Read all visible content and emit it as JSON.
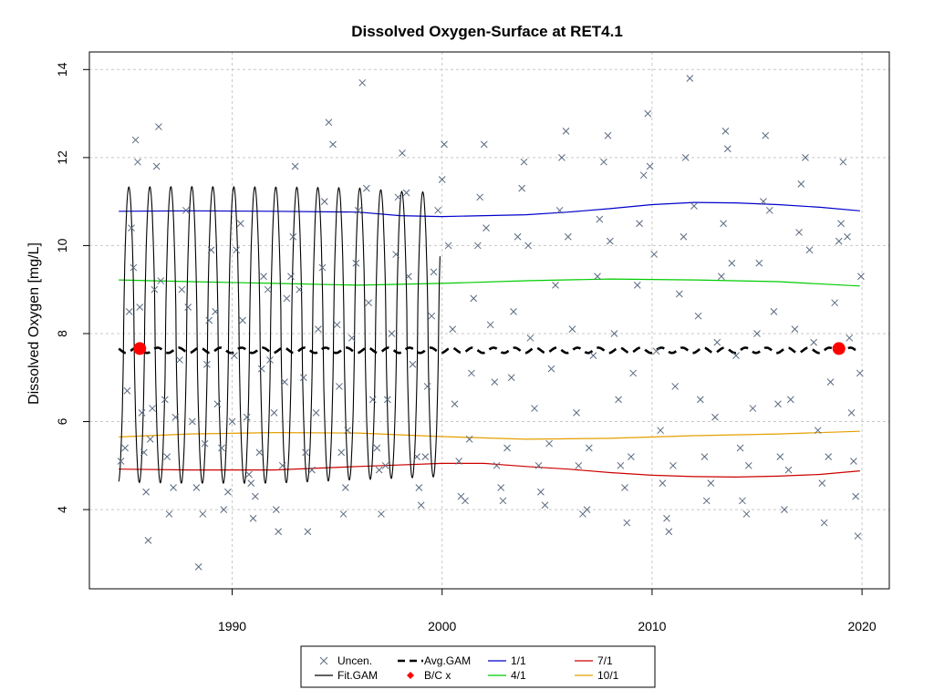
{
  "chart_data": {
    "type": "line",
    "title": "Dissolved Oxygen-Surface at RET4.1",
    "xlabel": "",
    "ylabel": "Dissolved Oxygen [mg/L]",
    "xlim": [
      1983.2,
      2021.3
    ],
    "ylim": [
      2.2,
      14.4
    ],
    "x_ticks": [
      "1990",
      "2000",
      "2010",
      "2020"
    ],
    "y_ticks": [
      "4",
      "6",
      "8",
      "10",
      "12",
      "14"
    ],
    "x_tick_values": [
      1990,
      2000,
      2010,
      2020
    ],
    "y_tick_values": [
      4,
      6,
      8,
      10,
      12,
      14
    ],
    "grid": true,
    "legend_position": "bottom-center",
    "colors": {
      "uncen": "#5a6a80",
      "fit_gam": "#000000",
      "avg_gam": "#000000",
      "bc": "#ff0000",
      "jan": "#0000cc",
      "apr": "#00cc00",
      "jul": "#cc0000",
      "oct": "#e69f00",
      "grid": "#c8c8c8"
    },
    "legend": [
      {
        "label": "Uncen.",
        "kind": "cross",
        "color": "#5a6a80"
      },
      {
        "label": "Fit.GAM",
        "kind": "line",
        "color": "#000000"
      },
      {
        "label": "Avg.GAM",
        "kind": "dashed",
        "color": "#000000"
      },
      {
        "label": "B/C x",
        "kind": "diamond",
        "color": "#ff0000"
      },
      {
        "label": "1/1",
        "kind": "line",
        "color": "#0000cc"
      },
      {
        "label": "4/1",
        "kind": "line",
        "color": "#00cc00"
      },
      {
        "label": "7/1",
        "kind": "line",
        "color": "#cc0000"
      },
      {
        "label": "10/1",
        "kind": "line",
        "color": "#e69f00"
      }
    ],
    "series": [
      {
        "name": "1/1",
        "x": [
          1984.6,
          1988,
          1992,
          1996,
          1998,
          2000,
          2002,
          2004,
          2006,
          2008,
          2010,
          2012,
          2014,
          2016,
          2018,
          2019.9
        ],
        "y": [
          10.78,
          10.79,
          10.78,
          10.76,
          10.68,
          10.66,
          10.68,
          10.7,
          10.76,
          10.84,
          10.93,
          10.98,
          10.97,
          10.93,
          10.87,
          10.79
        ]
      },
      {
        "name": "4/1",
        "x": [
          1984.6,
          1988,
          1992,
          1996,
          2000,
          2004,
          2008,
          2012,
          2016,
          2019.9
        ],
        "y": [
          9.22,
          9.18,
          9.14,
          9.1,
          9.14,
          9.2,
          9.24,
          9.22,
          9.18,
          9.08
        ]
      },
      {
        "name": "7/1",
        "x": [
          1984.6,
          1988,
          1992,
          1996,
          2000,
          2002,
          2004,
          2006,
          2008,
          2010,
          2012,
          2014,
          2016,
          2018,
          2019.9
        ],
        "y": [
          4.92,
          4.9,
          4.9,
          4.98,
          5.05,
          5.05,
          4.98,
          4.92,
          4.84,
          4.78,
          4.75,
          4.74,
          4.76,
          4.8,
          4.88
        ]
      },
      {
        "name": "10/1",
        "x": [
          1984.6,
          1988,
          1992,
          1996,
          2000,
          2004,
          2008,
          2012,
          2016,
          2019.9
        ],
        "y": [
          5.65,
          5.72,
          5.75,
          5.74,
          5.66,
          5.6,
          5.62,
          5.68,
          5.72,
          5.78
        ]
      },
      {
        "name": "Avg.GAM",
        "x": [
          1984.6,
          2019.9
        ],
        "y": [
          7.62,
          7.62
        ]
      }
    ],
    "fit_gam": {
      "x_start": 1984.6,
      "x_end": 1999.9,
      "amplitude": 3.35,
      "peak_fraction": 0.08
    },
    "bc_points": [
      {
        "x": 1985.6,
        "y": 7.66
      },
      {
        "x": 2018.9,
        "y": 7.66
      }
    ],
    "uncen_points": [
      [
        1984.7,
        5.1
      ],
      [
        1984.9,
        5.4
      ],
      [
        1985.0,
        6.7
      ],
      [
        1985.1,
        8.5
      ],
      [
        1985.2,
        10.4
      ],
      [
        1985.3,
        9.5
      ],
      [
        1985.4,
        12.4
      ],
      [
        1985.5,
        11.9
      ],
      [
        1985.6,
        8.6
      ],
      [
        1985.7,
        6.2
      ],
      [
        1985.8,
        5.3
      ],
      [
        1985.9,
        4.4
      ],
      [
        1986.0,
        3.3
      ],
      [
        1986.1,
        5.6
      ],
      [
        1986.2,
        6.3
      ],
      [
        1986.3,
        9.0
      ],
      [
        1986.4,
        11.8
      ],
      [
        1986.5,
        12.7
      ],
      [
        1986.6,
        9.2
      ],
      [
        1986.8,
        6.5
      ],
      [
        1986.9,
        5.2
      ],
      [
        1987.0,
        3.9
      ],
      [
        1987.2,
        4.5
      ],
      [
        1987.3,
        6.1
      ],
      [
        1987.5,
        7.4
      ],
      [
        1987.6,
        9.0
      ],
      [
        1987.8,
        10.8
      ],
      [
        1987.9,
        8.6
      ],
      [
        1988.1,
        6.0
      ],
      [
        1988.3,
        4.5
      ],
      [
        1988.4,
        2.7
      ],
      [
        1988.6,
        3.9
      ],
      [
        1988.7,
        5.5
      ],
      [
        1988.8,
        7.3
      ],
      [
        1988.9,
        8.3
      ],
      [
        1989.0,
        9.9
      ],
      [
        1989.2,
        8.5
      ],
      [
        1989.3,
        6.4
      ],
      [
        1989.5,
        5.4
      ],
      [
        1989.6,
        4.0
      ],
      [
        1989.8,
        4.4
      ],
      [
        1990.0,
        6.0
      ],
      [
        1990.1,
        7.5
      ],
      [
        1990.2,
        9.9
      ],
      [
        1990.4,
        10.5
      ],
      [
        1990.5,
        8.3
      ],
      [
        1990.7,
        6.1
      ],
      [
        1990.8,
        4.8
      ],
      [
        1990.9,
        4.6
      ],
      [
        1991.0,
        3.8
      ],
      [
        1991.1,
        4.3
      ],
      [
        1991.3,
        5.3
      ],
      [
        1991.4,
        7.2
      ],
      [
        1991.5,
        9.3
      ],
      [
        1991.7,
        9.0
      ],
      [
        1991.8,
        7.4
      ],
      [
        1992.0,
        6.2
      ],
      [
        1992.1,
        4.0
      ],
      [
        1992.2,
        3.5
      ],
      [
        1992.4,
        5.0
      ],
      [
        1992.5,
        6.9
      ],
      [
        1992.6,
        8.8
      ],
      [
        1992.8,
        9.3
      ],
      [
        1992.9,
        10.2
      ],
      [
        1993.0,
        11.8
      ],
      [
        1993.2,
        9.0
      ],
      [
        1993.4,
        7.0
      ],
      [
        1993.5,
        5.3
      ],
      [
        1993.6,
        3.5
      ],
      [
        1993.8,
        4.9
      ],
      [
        1994.0,
        6.2
      ],
      [
        1994.1,
        8.1
      ],
      [
        1994.3,
        9.5
      ],
      [
        1994.4,
        11.0
      ],
      [
        1994.6,
        12.8
      ],
      [
        1994.8,
        12.3
      ],
      [
        1995.0,
        8.2
      ],
      [
        1995.1,
        6.8
      ],
      [
        1995.2,
        5.3
      ],
      [
        1995.3,
        3.9
      ],
      [
        1995.4,
        4.5
      ],
      [
        1995.5,
        5.8
      ],
      [
        1995.7,
        7.9
      ],
      [
        1995.9,
        9.6
      ],
      [
        1996.0,
        10.8
      ],
      [
        1996.2,
        13.7
      ],
      [
        1996.4,
        11.3
      ],
      [
        1996.5,
        8.7
      ],
      [
        1996.7,
        6.5
      ],
      [
        1996.9,
        5.4
      ],
      [
        1997.0,
        4.9
      ],
      [
        1997.1,
        3.9
      ],
      [
        1997.3,
        5.0
      ],
      [
        1997.4,
        6.5
      ],
      [
        1997.6,
        8.0
      ],
      [
        1997.8,
        9.8
      ],
      [
        1997.9,
        11.1
      ],
      [
        1998.1,
        12.1
      ],
      [
        1998.3,
        11.2
      ],
      [
        1998.4,
        9.3
      ],
      [
        1998.6,
        7.3
      ],
      [
        1998.8,
        5.2
      ],
      [
        1998.9,
        4.5
      ],
      [
        1999.0,
        4.1
      ],
      [
        1999.2,
        5.2
      ],
      [
        1999.3,
        6.8
      ],
      [
        1999.5,
        8.4
      ],
      [
        1999.6,
        9.4
      ],
      [
        1999.8,
        10.8
      ],
      [
        2000.0,
        11.5
      ],
      [
        2000.1,
        12.3
      ],
      [
        2000.3,
        10.0
      ],
      [
        2000.5,
        8.1
      ],
      [
        2000.6,
        6.4
      ],
      [
        2000.8,
        5.1
      ],
      [
        2000.9,
        4.3
      ],
      [
        2001.1,
        4.2
      ],
      [
        2001.3,
        5.6
      ],
      [
        2001.4,
        7.1
      ],
      [
        2001.5,
        8.8
      ],
      [
        2001.7,
        10.0
      ],
      [
        2001.8,
        11.1
      ],
      [
        2002.0,
        12.3
      ],
      [
        2002.1,
        10.4
      ],
      [
        2002.3,
        8.2
      ],
      [
        2002.5,
        6.9
      ],
      [
        2002.6,
        5.0
      ],
      [
        2002.8,
        4.5
      ],
      [
        2002.9,
        4.2
      ],
      [
        2003.1,
        5.4
      ],
      [
        2003.3,
        7.0
      ],
      [
        2003.4,
        8.5
      ],
      [
        2003.6,
        10.2
      ],
      [
        2003.8,
        11.3
      ],
      [
        2003.9,
        11.9
      ],
      [
        2004.1,
        10.0
      ],
      [
        2004.2,
        7.9
      ],
      [
        2004.4,
        6.3
      ],
      [
        2004.6,
        5.0
      ],
      [
        2004.7,
        4.4
      ],
      [
        2004.9,
        4.1
      ],
      [
        2005.1,
        5.5
      ],
      [
        2005.2,
        7.2
      ],
      [
        2005.4,
        9.1
      ],
      [
        2005.6,
        10.8
      ],
      [
        2005.7,
        12.0
      ],
      [
        2005.9,
        12.6
      ],
      [
        2006.0,
        10.2
      ],
      [
        2006.2,
        8.1
      ],
      [
        2006.4,
        6.2
      ],
      [
        2006.5,
        5.0
      ],
      [
        2006.7,
        3.9
      ],
      [
        2006.9,
        4.0
      ],
      [
        2007.0,
        5.4
      ],
      [
        2007.2,
        7.5
      ],
      [
        2007.4,
        9.3
      ],
      [
        2007.5,
        10.6
      ],
      [
        2007.7,
        11.9
      ],
      [
        2007.9,
        12.5
      ],
      [
        2008.0,
        10.1
      ],
      [
        2008.2,
        8.0
      ],
      [
        2008.4,
        6.5
      ],
      [
        2008.5,
        5.0
      ],
      [
        2008.7,
        4.5
      ],
      [
        2008.8,
        3.7
      ],
      [
        2009.0,
        5.2
      ],
      [
        2009.1,
        7.1
      ],
      [
        2009.3,
        9.1
      ],
      [
        2009.4,
        10.5
      ],
      [
        2009.6,
        11.6
      ],
      [
        2009.8,
        13.0
      ],
      [
        2009.9,
        11.8
      ],
      [
        2010.1,
        9.8
      ],
      [
        2010.2,
        7.6
      ],
      [
        2010.4,
        5.8
      ],
      [
        2010.5,
        4.6
      ],
      [
        2010.7,
        3.8
      ],
      [
        2010.8,
        3.5
      ],
      [
        2011.0,
        5.0
      ],
      [
        2011.1,
        6.8
      ],
      [
        2011.3,
        8.9
      ],
      [
        2011.5,
        10.2
      ],
      [
        2011.6,
        12.0
      ],
      [
        2011.8,
        13.8
      ],
      [
        2012.0,
        10.9
      ],
      [
        2012.2,
        8.4
      ],
      [
        2012.3,
        6.5
      ],
      [
        2012.5,
        5.2
      ],
      [
        2012.6,
        4.2
      ],
      [
        2012.8,
        4.6
      ],
      [
        2013.0,
        6.1
      ],
      [
        2013.1,
        7.8
      ],
      [
        2013.3,
        9.3
      ],
      [
        2013.4,
        10.5
      ],
      [
        2013.5,
        12.6
      ],
      [
        2013.6,
        12.2
      ],
      [
        2013.8,
        9.6
      ],
      [
        2014.0,
        7.5
      ],
      [
        2014.2,
        5.4
      ],
      [
        2014.3,
        4.2
      ],
      [
        2014.5,
        3.9
      ],
      [
        2014.6,
        5.0
      ],
      [
        2014.8,
        6.3
      ],
      [
        2015.0,
        8.0
      ],
      [
        2015.1,
        9.6
      ],
      [
        2015.3,
        11.0
      ],
      [
        2015.4,
        12.5
      ],
      [
        2015.6,
        10.8
      ],
      [
        2015.8,
        8.5
      ],
      [
        2016.0,
        6.4
      ],
      [
        2016.1,
        5.2
      ],
      [
        2016.3,
        4.0
      ],
      [
        2016.5,
        4.9
      ],
      [
        2016.6,
        6.5
      ],
      [
        2016.8,
        8.1
      ],
      [
        2017.0,
        10.3
      ],
      [
        2017.1,
        11.4
      ],
      [
        2017.3,
        12.0
      ],
      [
        2017.5,
        9.9
      ],
      [
        2017.7,
        7.8
      ],
      [
        2017.9,
        5.8
      ],
      [
        2018.1,
        4.6
      ],
      [
        2018.2,
        3.7
      ],
      [
        2018.4,
        5.2
      ],
      [
        2018.5,
        6.9
      ],
      [
        2018.7,
        8.7
      ],
      [
        2018.9,
        10.1
      ],
      [
        2019.0,
        10.5
      ],
      [
        2019.1,
        11.9
      ],
      [
        2019.3,
        10.2
      ],
      [
        2019.4,
        7.9
      ],
      [
        2019.5,
        6.2
      ],
      [
        2019.6,
        5.1
      ],
      [
        2019.7,
        4.3
      ],
      [
        2019.8,
        3.4
      ],
      [
        2019.9,
        7.1
      ],
      [
        2019.95,
        9.3
      ]
    ]
  }
}
